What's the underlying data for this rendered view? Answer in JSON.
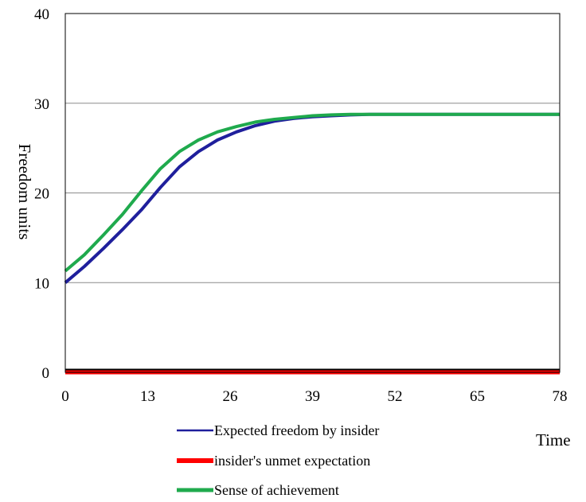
{
  "chart_data": {
    "type": "line",
    "xlabel": "Time",
    "ylabel": "Freedom units",
    "xlim": [
      0,
      78
    ],
    "ylim": [
      0,
      40
    ],
    "x_ticks": [
      "0",
      "13",
      "26",
      "39",
      "52",
      "65",
      "78"
    ],
    "y_ticks": [
      "0",
      "10",
      "20",
      "30",
      "40"
    ],
    "grid": "horizontal",
    "legend_position": "bottom",
    "x": [
      0,
      3,
      6,
      9,
      12,
      15,
      18,
      21,
      24,
      27,
      30,
      33,
      36,
      39,
      42,
      45,
      48,
      52,
      58,
      65,
      72,
      78
    ],
    "series": [
      {
        "name": "Expected freedom by insider",
        "color": "#1f1f9c",
        "values": [
          10.0,
          11.8,
          13.8,
          15.9,
          18.1,
          20.6,
          22.9,
          24.6,
          25.9,
          26.8,
          27.5,
          28.0,
          28.3,
          28.5,
          28.6,
          28.7,
          28.75,
          28.75,
          28.75,
          28.75,
          28.75,
          28.75
        ]
      },
      {
        "name": "insider's unmet expectation",
        "color": "#ff0000",
        "values": [
          0,
          0,
          0,
          0,
          0,
          0,
          0,
          0,
          0,
          0,
          0,
          0,
          0,
          0,
          0,
          0,
          0,
          0,
          0,
          0,
          0,
          0
        ]
      },
      {
        "name": "Sense of achievement",
        "color": "#1faa4d",
        "values": [
          11.3,
          13.1,
          15.3,
          17.6,
          20.2,
          22.7,
          24.6,
          25.9,
          26.8,
          27.4,
          27.9,
          28.2,
          28.4,
          28.6,
          28.7,
          28.75,
          28.75,
          28.75,
          28.75,
          28.75,
          28.75,
          28.75
        ]
      }
    ]
  }
}
